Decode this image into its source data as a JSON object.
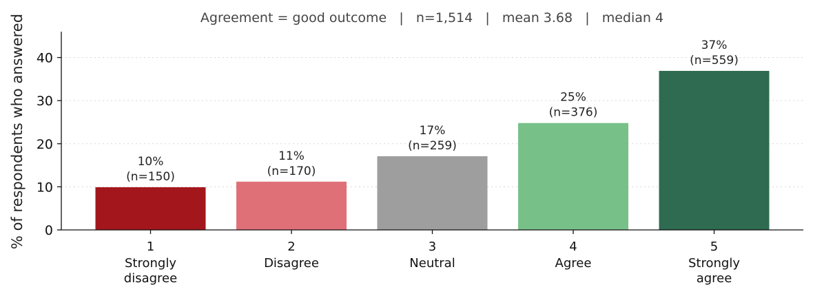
{
  "chart_data": {
    "type": "bar",
    "subtitle": "Agreement = good outcome   |   n=1,514   |   mean 3.68   |   median 4",
    "ylabel": "% of respondents who answered",
    "xlabel": "",
    "ylim": [
      0,
      46
    ],
    "yticks": [
      0,
      10,
      20,
      30,
      40
    ],
    "grid": "horizontal dotted",
    "categories": [
      {
        "code": "1",
        "label": [
          "Strongly",
          "disagree"
        ]
      },
      {
        "code": "2",
        "label": [
          "Disagree"
        ]
      },
      {
        "code": "3",
        "label": [
          "Neutral"
        ]
      },
      {
        "code": "4",
        "label": [
          "Agree"
        ]
      },
      {
        "code": "5",
        "label": [
          "Strongly",
          "agree"
        ]
      }
    ],
    "values": [
      9.9,
      11.2,
      17.1,
      24.8,
      36.9
    ],
    "pct_labels": [
      "10%",
      "11%",
      "17%",
      "25%",
      "37%"
    ],
    "n_labels": [
      "(n=150)",
      "(n=170)",
      "(n=259)",
      "(n=376)",
      "(n=559)"
    ],
    "colors": [
      "#a3171c",
      "#e07078",
      "#9e9e9e",
      "#77c189",
      "#2e6b50"
    ]
  }
}
